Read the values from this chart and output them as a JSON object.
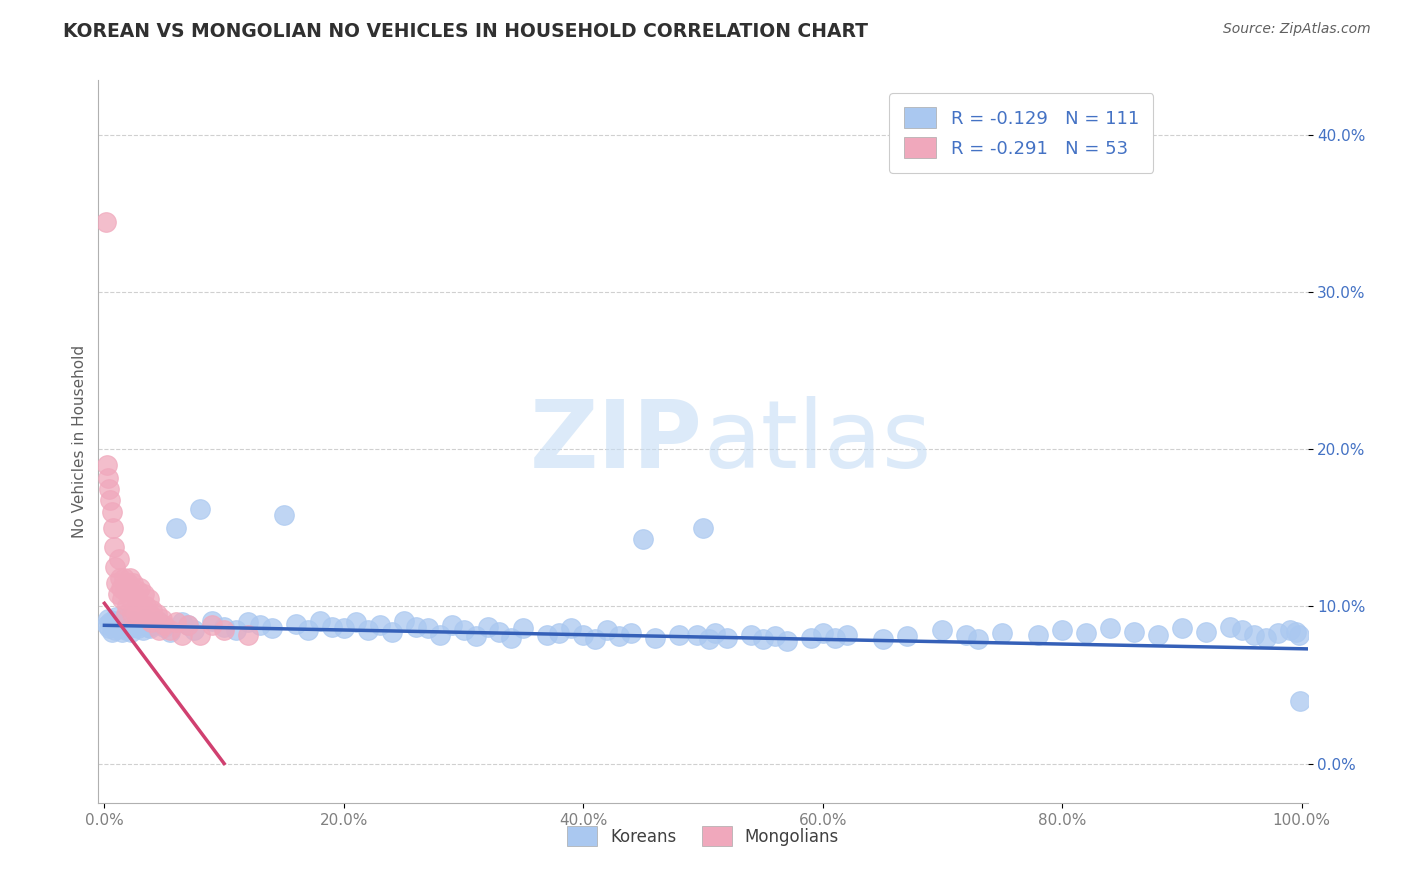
{
  "title": "KOREAN VS MONGOLIAN NO VEHICLES IN HOUSEHOLD CORRELATION CHART",
  "source": "Source: ZipAtlas.com",
  "ylabel": "No Vehicles in Household",
  "watermark": "ZIPatlas",
  "xlim": [
    -0.005,
    1.005
  ],
  "ylim": [
    -0.025,
    0.435
  ],
  "xticks": [
    0.0,
    0.2,
    0.4,
    0.6,
    0.8,
    1.0
  ],
  "xticklabels": [
    "0.0%",
    "20.0%",
    "40.0%",
    "60.0%",
    "80.0%",
    "100.0%"
  ],
  "yticks": [
    0.0,
    0.1,
    0.2,
    0.3,
    0.4
  ],
  "yticklabels": [
    "0.0%",
    "10.0%",
    "20.0%",
    "30.0%",
    "40.0%"
  ],
  "korean_R": -0.129,
  "korean_N": 111,
  "mongolian_R": -0.291,
  "mongolian_N": 53,
  "legend_label1": "Koreans",
  "legend_label2": "Mongolians",
  "korean_color": "#aac8f0",
  "mongolian_color": "#f0a8bc",
  "korean_line_color": "#3560b8",
  "mongolian_line_color": "#d04070",
  "background_color": "#ffffff",
  "grid_color": "#d0d0d0",
  "title_color": "#303030",
  "axis_label_color": "#606060",
  "tick_color": "#808080",
  "y_tick_color": "#4472c4",
  "legend_text_color": "#4472c4",
  "bottom_legend_color": "#404040",
  "korean_x": [
    0.002,
    0.003,
    0.004,
    0.005,
    0.006,
    0.007,
    0.008,
    0.009,
    0.01,
    0.011,
    0.012,
    0.013,
    0.014,
    0.015,
    0.016,
    0.017,
    0.018,
    0.019,
    0.02,
    0.022,
    0.024,
    0.026,
    0.028,
    0.03,
    0.032,
    0.034,
    0.036,
    0.038,
    0.04,
    0.045,
    0.05,
    0.055,
    0.06,
    0.065,
    0.07,
    0.075,
    0.08,
    0.09,
    0.1,
    0.11,
    0.12,
    0.13,
    0.14,
    0.15,
    0.16,
    0.17,
    0.18,
    0.19,
    0.2,
    0.21,
    0.22,
    0.23,
    0.24,
    0.25,
    0.26,
    0.27,
    0.28,
    0.29,
    0.3,
    0.31,
    0.32,
    0.33,
    0.34,
    0.35,
    0.37,
    0.38,
    0.39,
    0.4,
    0.41,
    0.42,
    0.43,
    0.44,
    0.45,
    0.46,
    0.48,
    0.5,
    0.51,
    0.52,
    0.54,
    0.55,
    0.56,
    0.57,
    0.59,
    0.6,
    0.61,
    0.62,
    0.65,
    0.67,
    0.7,
    0.72,
    0.73,
    0.75,
    0.78,
    0.8,
    0.82,
    0.84,
    0.86,
    0.88,
    0.9,
    0.92,
    0.94,
    0.95,
    0.96,
    0.97,
    0.98,
    0.99,
    0.995,
    0.998,
    0.999,
    0.495,
    0.505
  ],
  "korean_y": [
    0.088,
    0.092,
    0.086,
    0.09,
    0.084,
    0.089,
    0.091,
    0.085,
    0.093,
    0.087,
    0.086,
    0.091,
    0.088,
    0.084,
    0.092,
    0.087,
    0.085,
    0.09,
    0.088,
    0.084,
    0.091,
    0.087,
    0.086,
    0.09,
    0.085,
    0.092,
    0.087,
    0.086,
    0.088,
    0.091,
    0.087,
    0.084,
    0.15,
    0.09,
    0.088,
    0.085,
    0.162,
    0.091,
    0.087,
    0.085,
    0.09,
    0.088,
    0.086,
    0.158,
    0.089,
    0.085,
    0.091,
    0.087,
    0.086,
    0.09,
    0.085,
    0.088,
    0.084,
    0.091,
    0.087,
    0.086,
    0.082,
    0.088,
    0.085,
    0.081,
    0.087,
    0.084,
    0.08,
    0.086,
    0.082,
    0.083,
    0.086,
    0.082,
    0.079,
    0.085,
    0.081,
    0.083,
    0.143,
    0.08,
    0.082,
    0.15,
    0.083,
    0.08,
    0.082,
    0.079,
    0.081,
    0.078,
    0.08,
    0.083,
    0.08,
    0.082,
    0.079,
    0.081,
    0.085,
    0.082,
    0.079,
    0.083,
    0.082,
    0.085,
    0.083,
    0.086,
    0.084,
    0.082,
    0.086,
    0.084,
    0.087,
    0.085,
    0.082,
    0.08,
    0.083,
    0.085,
    0.084,
    0.082,
    0.04,
    0.082,
    0.079
  ],
  "mongolian_x": [
    0.001,
    0.002,
    0.003,
    0.004,
    0.005,
    0.006,
    0.007,
    0.008,
    0.009,
    0.01,
    0.011,
    0.012,
    0.013,
    0.014,
    0.015,
    0.016,
    0.017,
    0.018,
    0.019,
    0.02,
    0.021,
    0.022,
    0.023,
    0.024,
    0.025,
    0.026,
    0.027,
    0.028,
    0.029,
    0.03,
    0.031,
    0.032,
    0.033,
    0.034,
    0.035,
    0.036,
    0.037,
    0.038,
    0.039,
    0.04,
    0.042,
    0.044,
    0.046,
    0.048,
    0.05,
    0.055,
    0.06,
    0.065,
    0.07,
    0.08,
    0.09,
    0.1,
    0.12
  ],
  "mongolian_y": [
    0.345,
    0.19,
    0.182,
    0.175,
    0.168,
    0.16,
    0.15,
    0.138,
    0.125,
    0.115,
    0.108,
    0.13,
    0.118,
    0.112,
    0.105,
    0.118,
    0.11,
    0.095,
    0.1,
    0.115,
    0.118,
    0.105,
    0.095,
    0.115,
    0.108,
    0.095,
    0.1,
    0.11,
    0.095,
    0.112,
    0.1,
    0.095,
    0.108,
    0.095,
    0.1,
    0.092,
    0.105,
    0.095,
    0.09,
    0.098,
    0.092,
    0.095,
    0.085,
    0.092,
    0.088,
    0.085,
    0.09,
    0.082,
    0.088,
    0.082,
    0.088,
    0.085,
    0.082
  ]
}
